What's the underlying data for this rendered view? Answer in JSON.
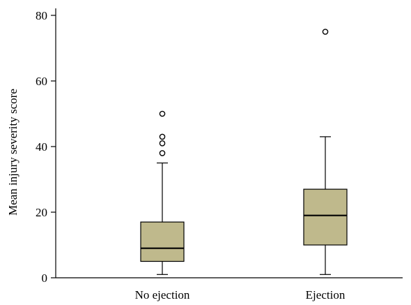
{
  "chart_data": {
    "type": "boxplot",
    "title": "",
    "xlabel": "",
    "ylabel": "Mean injury severity score",
    "ylim": [
      0,
      80
    ],
    "yticks": [
      0,
      20,
      40,
      60,
      80
    ],
    "grid": false,
    "box_color": "#bfb98c",
    "categories": [
      "No ejection",
      "Ejection"
    ],
    "boxes": [
      {
        "category": "No ejection",
        "whisker_low": 1,
        "q1": 5,
        "median": 9,
        "q3": 17,
        "whisker_high": 35,
        "outliers": [
          38,
          41,
          43,
          50
        ]
      },
      {
        "category": "Ejection",
        "whisker_low": 1,
        "q1": 10,
        "median": 19,
        "q3": 27,
        "whisker_high": 43,
        "outliers": [
          75
        ]
      }
    ]
  }
}
